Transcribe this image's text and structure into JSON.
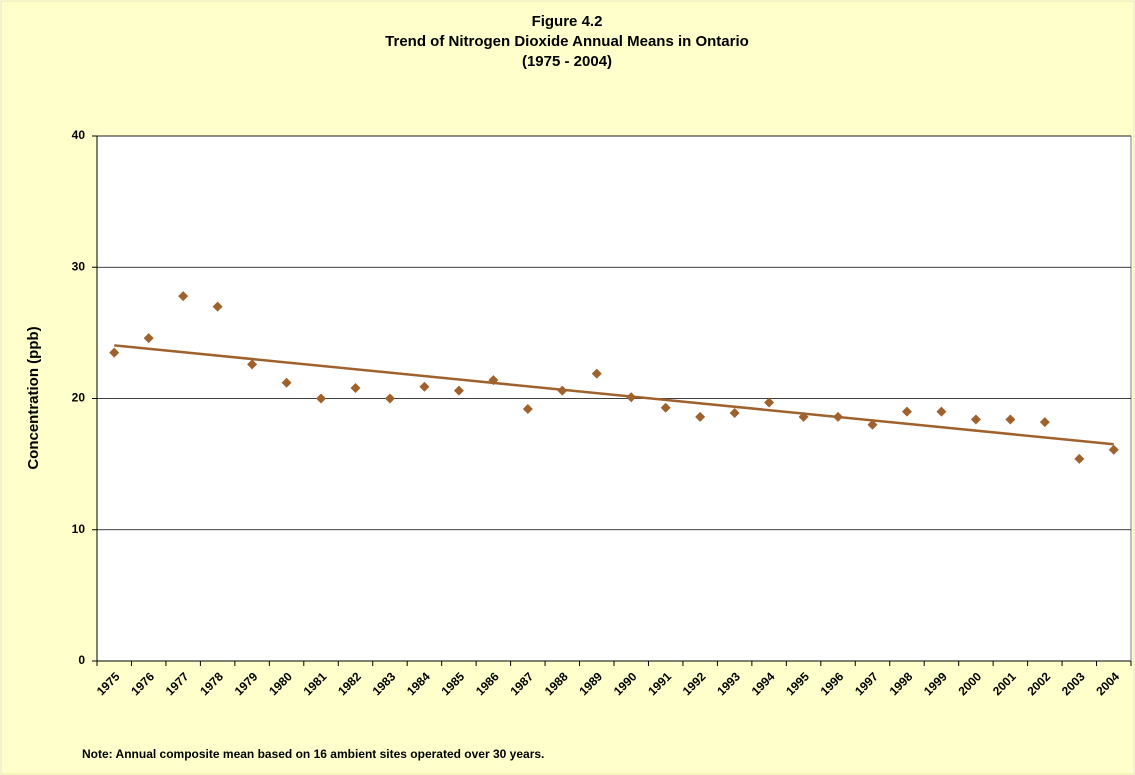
{
  "chart_data": {
    "type": "scatter",
    "title": [
      "Figure 4.2",
      "Trend of Nitrogen Dioxide Annual Means in Ontario",
      "(1975 - 2004)"
    ],
    "ylabel": "Concentration (ppb)",
    "note": "Note: Annual composite mean based on 16 ambient sites operated over 30 years.",
    "categories": [
      "1975",
      "1976",
      "1977",
      "1978",
      "1979",
      "1980",
      "1981",
      "1982",
      "1983",
      "1984",
      "1985",
      "1986",
      "1987",
      "1988",
      "1989",
      "1990",
      "1991",
      "1992",
      "1993",
      "1994",
      "1995",
      "1996",
      "1997",
      "1998",
      "1999",
      "2000",
      "2001",
      "2002",
      "2003",
      "2004"
    ],
    "values": [
      23.5,
      24.6,
      27.8,
      27.0,
      22.6,
      21.2,
      20.0,
      20.8,
      20.0,
      20.9,
      20.6,
      21.4,
      19.2,
      20.6,
      21.9,
      20.1,
      19.3,
      18.6,
      18.9,
      19.7,
      18.6,
      18.6,
      18.0,
      19.0,
      19.0,
      18.4,
      18.4,
      18.2,
      15.4,
      16.1
    ],
    "color": "#a0622d",
    "trendline": true,
    "ylim": [
      0,
      40
    ],
    "yticks": [
      0,
      10,
      20,
      30,
      40
    ],
    "grid": true
  }
}
